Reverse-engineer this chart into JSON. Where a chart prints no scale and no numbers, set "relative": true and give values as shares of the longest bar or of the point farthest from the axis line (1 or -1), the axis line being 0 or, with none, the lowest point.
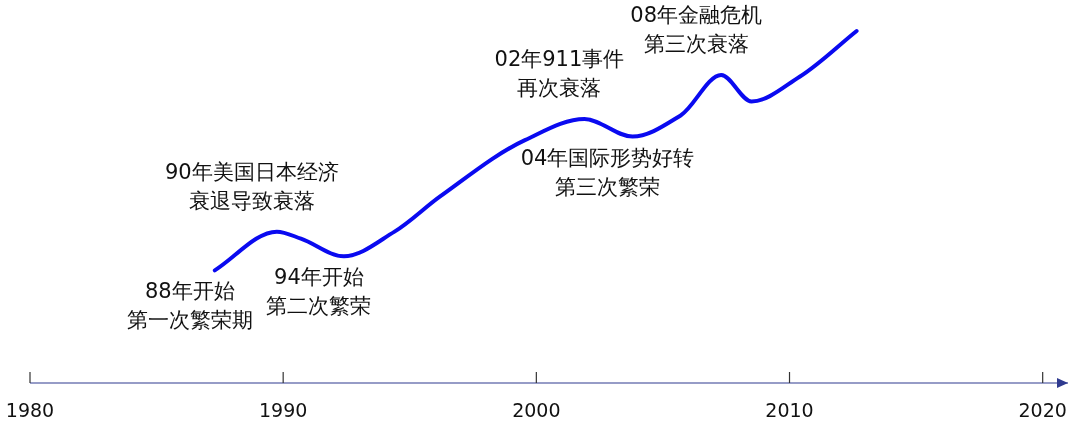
{
  "chart_data": {
    "type": "line",
    "relative": true,
    "x": [
      1987.3,
      1989.75,
      1990.7,
      1992.4,
      1994.4,
      1996.2,
      1999.55,
      2001.9,
      2003.8,
      2005.7,
      2007.3,
      2008.5,
      2010.4,
      2012.65
    ],
    "series": [
      {
        "color": "#0a0af0",
        "values": [
          0.32,
          0.43,
          0.41,
          0.36,
          0.43,
          0.53,
          0.69,
          0.75,
          0.7,
          0.76,
          0.875,
          0.8,
          0.87,
          1.0
        ]
      }
    ],
    "xlim": [
      1980,
      2021
    ],
    "xticks": [
      1980,
      1990,
      2000,
      2010,
      2020
    ],
    "annotations": [
      {
        "text": "88年开始",
        "x": 1987.3,
        "y": 0.32
      },
      "第一次繁荣期",
      {
        "text": "90年美国日本经济",
        "x": 1989.75,
        "y": 0.43
      },
      "衰退导致衰落",
      {
        "text": "94年开始",
        "x": 1992.4,
        "y": 0.36
      },
      "第二次繁荣",
      {
        "text": "02年911事件",
        "x": 2001.9,
        "y": 0.75
      },
      "再次衰落",
      {
        "text": "04年国际形势好转",
        "x": 2003.8,
        "y": 0.7
      },
      "第三次繁荣",
      {
        "text": "08年金融危机",
        "x": 2007.3,
        "y": 0.875
      },
      "第三次衰落"
    ]
  }
}
